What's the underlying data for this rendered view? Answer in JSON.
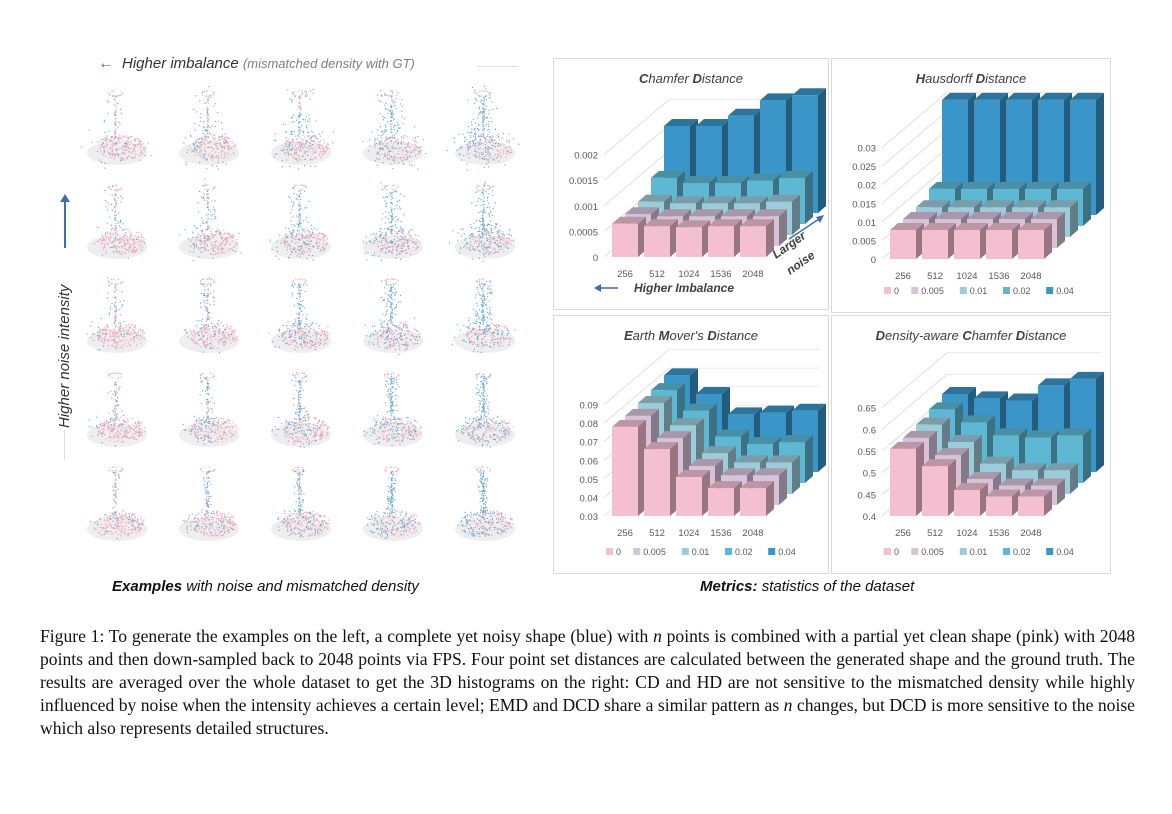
{
  "left_panel": {
    "top_label": {
      "main": "Higher imbalance",
      "sub": "(mismatched density with GT)",
      "arrow": "←"
    },
    "side_label": "Higher noise intensity",
    "caption_bold": "Examples",
    "caption_rest": " with noise and mismatched density",
    "grid": {
      "rows": 5,
      "cols": 5,
      "colors": {
        "clean": "#f2a7b8",
        "noisy": "#5aa8d6"
      }
    }
  },
  "right_panel": {
    "caption_bold": "Metrics:",
    "caption_rest": " statistics of the dataset"
  },
  "chart_data": [
    {
      "type": "bar3d",
      "title": "Chamfer Distance",
      "title_bold_letters": [
        "C",
        "D"
      ],
      "categories": [
        "256",
        "512",
        "1024",
        "1536",
        "2048"
      ],
      "yticks": [
        "0",
        "0.0005",
        "0.001",
        "0.0015",
        "0.002"
      ],
      "ylim": [
        0,
        0.0025
      ],
      "xlabel": "Higher Imbalance",
      "zlabel": "Larger noise",
      "legend": null,
      "series": [
        {
          "name": "0",
          "values": [
            0.00065,
            0.0006,
            0.00058,
            0.0006,
            0.0006
          ]
        },
        {
          "name": "0.005",
          "values": [
            0.00062,
            0.00058,
            0.00058,
            0.00058,
            0.00058
          ]
        },
        {
          "name": "0.01",
          "values": [
            0.00065,
            0.00062,
            0.00062,
            0.00062,
            0.00065
          ]
        },
        {
          "name": "0.02",
          "values": [
            0.0009,
            0.0008,
            0.0008,
            0.00085,
            0.0009
          ]
        },
        {
          "name": "0.04",
          "values": [
            0.0017,
            0.0017,
            0.0019,
            0.0022,
            0.0023
          ]
        }
      ]
    },
    {
      "type": "bar3d",
      "title": "Hausdorff Distance",
      "title_bold_letters": [
        "H",
        "D"
      ],
      "categories": [
        "256",
        "512",
        "1024",
        "1536",
        "2048"
      ],
      "yticks": [
        "0",
        "0.005",
        "0.01",
        "0.015",
        "0.02",
        "0.025",
        "0.03"
      ],
      "ylim": [
        0,
        0.035
      ],
      "legend": [
        "0",
        "0.005",
        "0.01",
        "0.02",
        "0.04"
      ],
      "series": [
        {
          "name": "0",
          "values": [
            0.0078,
            0.0078,
            0.0078,
            0.0078,
            0.0078
          ]
        },
        {
          "name": "0.005",
          "values": [
            0.0078,
            0.0078,
            0.0078,
            0.0078,
            0.0078
          ]
        },
        {
          "name": "0.01",
          "values": [
            0.008,
            0.008,
            0.008,
            0.008,
            0.008
          ]
        },
        {
          "name": "0.02",
          "values": [
            0.01,
            0.01,
            0.01,
            0.01,
            0.01
          ]
        },
        {
          "name": "0.04",
          "values": [
            0.031,
            0.031,
            0.031,
            0.031,
            0.031
          ]
        }
      ]
    },
    {
      "type": "bar3d",
      "title": "Earth Mover's Distance",
      "title_bold_letters": [
        "E",
        "M",
        "D"
      ],
      "categories": [
        "256",
        "512",
        "1024",
        "1536",
        "2048"
      ],
      "yticks": [
        "0.03",
        "0.04",
        "0.05",
        "0.06",
        "0.07",
        "0.08",
        "0.09"
      ],
      "ylim": [
        0.03,
        0.1
      ],
      "legend": [
        "0",
        "0.005",
        "0.01",
        "0.02",
        "0.04"
      ],
      "series": [
        {
          "name": "0",
          "values": [
            0.078,
            0.066,
            0.051,
            0.045,
            0.045
          ]
        },
        {
          "name": "0.005",
          "values": [
            0.078,
            0.066,
            0.051,
            0.046,
            0.046
          ]
        },
        {
          "name": "0.01",
          "values": [
            0.079,
            0.067,
            0.052,
            0.047,
            0.047
          ]
        },
        {
          "name": "0.02",
          "values": [
            0.08,
            0.069,
            0.055,
            0.051,
            0.052
          ]
        },
        {
          "name": "0.04",
          "values": [
            0.082,
            0.072,
            0.061,
            0.062,
            0.063
          ]
        }
      ]
    },
    {
      "type": "bar3d",
      "title": "Density-aware Chamfer Distance",
      "title_bold_letters": [
        "D",
        "C",
        "D"
      ],
      "categories": [
        "256",
        "512",
        "1024",
        "1536",
        "2048"
      ],
      "yticks": [
        "0.4",
        "0.45",
        "0.5",
        "0.55",
        "0.6",
        "0.65"
      ],
      "ylim": [
        0.4,
        0.7
      ],
      "legend": [
        "0",
        "0.005",
        "0.01",
        "0.02",
        "0.04"
      ],
      "series": [
        {
          "name": "0",
          "values": [
            0.555,
            0.515,
            0.46,
            0.445,
            0.445
          ]
        },
        {
          "name": "0.005",
          "values": [
            0.555,
            0.515,
            0.46,
            0.445,
            0.445
          ]
        },
        {
          "name": "0.01",
          "values": [
            0.56,
            0.52,
            0.47,
            0.455,
            0.455
          ]
        },
        {
          "name": "0.02",
          "values": [
            0.57,
            0.54,
            0.51,
            0.505,
            0.51
          ]
        },
        {
          "name": "0.04",
          "values": [
            0.58,
            0.57,
            0.565,
            0.6,
            0.615
          ]
        }
      ]
    }
  ],
  "series_colors": {
    "0": "#f4bfd0",
    "0.005": "#d7c3d9",
    "0.01": "#9ccbd9",
    "0.02": "#5fb8d3",
    "0.04": "#3a95c9"
  },
  "figure_caption": {
    "label": "Figure 1:",
    "text_parts": [
      " To generate the examples on the left, a complete yet noisy shape (blue) with ",
      "n",
      " points is combined with a partial yet clean shape (pink) with 2048 points and then down-sampled back to 2048 points via FPS. Four point set distances are calculated between the generated shape and the ground truth. The results are averaged over the whole dataset to get the 3D histograms on the right: CD and HD are not sensitive to the mismatched density while highly influenced by noise when the intensity achieves a certain level; EMD and DCD share a similar pattern as ",
      "n",
      " changes, but DCD is more sensitive to the noise which also represents detailed structures."
    ]
  }
}
